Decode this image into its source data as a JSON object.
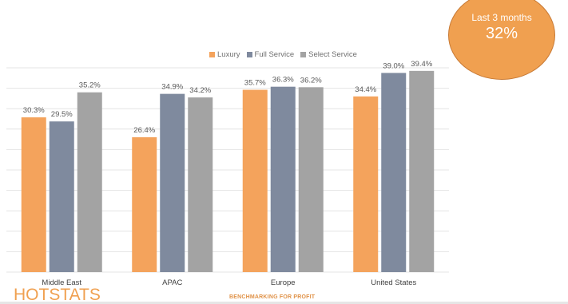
{
  "badge": {
    "label": "Last 3 months",
    "value": "32%"
  },
  "footer": {
    "logo": "HOTSTATS",
    "tagline": "BENCHMARKING FOR PROFIT"
  },
  "colors": {
    "luxury": "#f4a35c",
    "full_service": "#7f8a9e",
    "select_service": "#a3a3a3"
  },
  "chart_data": {
    "type": "bar",
    "categories": [
      "Middle East",
      "APAC",
      "Europe",
      "United States"
    ],
    "series": [
      {
        "name": "Luxury",
        "values": [
          30.3,
          26.4,
          35.7,
          34.4
        ],
        "labels": [
          "30.3%",
          "26.4%",
          "35.7%",
          "34.4%"
        ]
      },
      {
        "name": "Full Service",
        "values": [
          29.5,
          34.9,
          36.3,
          39.0
        ],
        "labels": [
          "29.5%",
          "34.9%",
          "36.3%",
          "39.0%"
        ]
      },
      {
        "name": "Select Service",
        "values": [
          35.2,
          34.2,
          36.2,
          39.4
        ],
        "labels": [
          "35.2%",
          "34.2%",
          "36.2%",
          "39.4%"
        ]
      }
    ],
    "ylim": [
      0,
      40
    ],
    "grid": true,
    "legend_position": "top"
  }
}
